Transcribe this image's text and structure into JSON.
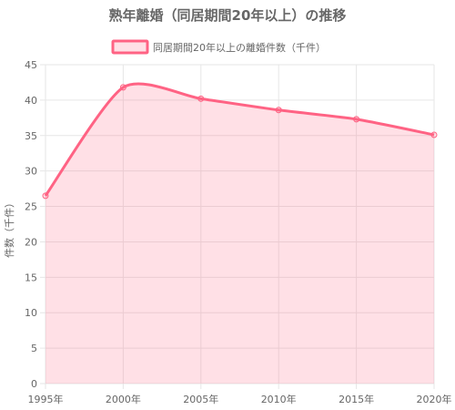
{
  "colors": {
    "line": "#ff6384",
    "fill": "rgba(255, 99, 132, 0.2)",
    "grid": "#e6e6e6",
    "text": "#666666"
  },
  "chart_data": {
    "type": "area",
    "title": "熟年離婚（同居期間20年以上）の推移",
    "xlabel": "",
    "ylabel": "件数（千件）",
    "categories": [
      "1995年",
      "2000年",
      "2005年",
      "2010年",
      "2015年",
      "2020年"
    ],
    "series": [
      {
        "name": "同居期間20年以上の離婚件数（千件）",
        "values": [
          26.5,
          41.8,
          40.2,
          38.6,
          37.3,
          35.1
        ]
      }
    ],
    "ylim": [
      0,
      45
    ],
    "yticks": [
      0,
      5,
      10,
      15,
      20,
      25,
      30,
      35,
      40,
      45
    ],
    "grid": true,
    "legend": "top"
  }
}
